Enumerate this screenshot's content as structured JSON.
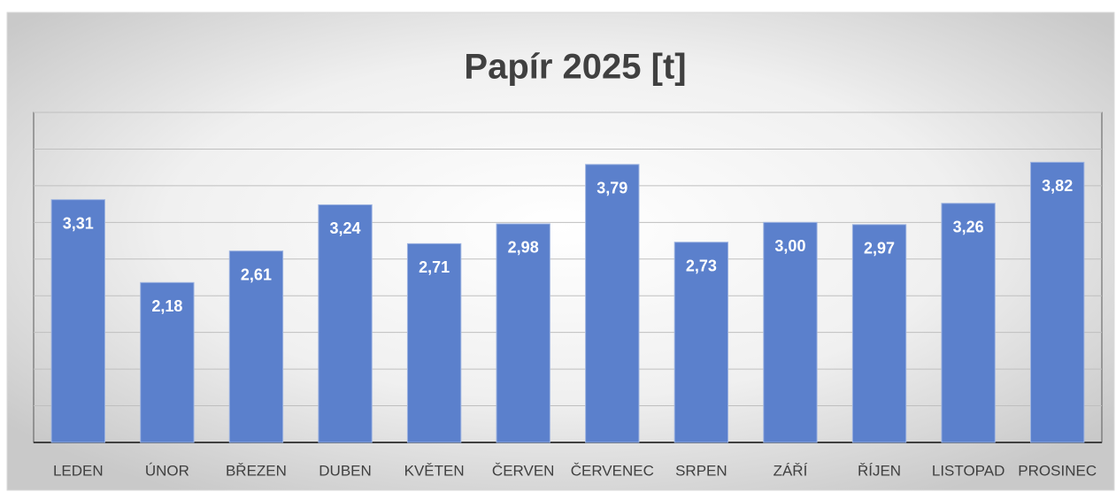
{
  "chart_data": {
    "type": "bar",
    "title": "Papír 2025 [t]",
    "categories": [
      "LEDEN",
      "ÚNOR",
      "BŘEZEN",
      "DUBEN",
      "KVĚTEN",
      "ČERVEN",
      "ČERVENEC",
      "SRPEN",
      "ZÁŘÍ",
      "ŘÍJEN",
      "LISTOPAD",
      "PROSINEC"
    ],
    "values": [
      3.31,
      2.18,
      2.61,
      3.24,
      2.71,
      2.98,
      3.79,
      2.73,
      3.0,
      2.97,
      3.26,
      3.82
    ],
    "value_labels": [
      "3,31",
      "2,18",
      "2,61",
      "3,24",
      "2,71",
      "2,98",
      "3,79",
      "2,73",
      "3,00",
      "2,97",
      "3,26",
      "3,82"
    ],
    "color": "#5b80cc",
    "ylim": [
      0,
      4.5
    ],
    "yticks": [
      0,
      0.5,
      1,
      1.5,
      2,
      2.5,
      3,
      3.5,
      4,
      4.5
    ],
    "grid": true
  }
}
